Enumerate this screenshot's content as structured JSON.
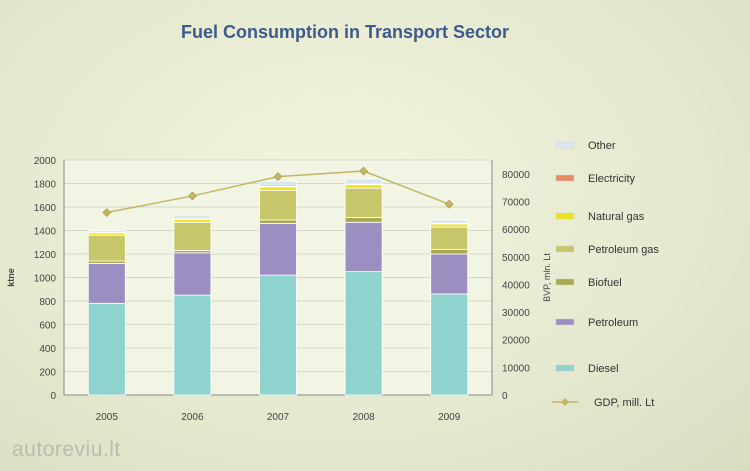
{
  "chart_data": {
    "type": "bar",
    "title": "Fuel Consumption in Transport Sector",
    "ylabel": "ktne",
    "y2label": "BVP, mln. Lt",
    "ylim": [
      0,
      2000
    ],
    "y2lim": [
      0,
      85000
    ],
    "yticks": [
      "0",
      "200",
      "400",
      "600",
      "800",
      "1000",
      "1200",
      "1400",
      "1600",
      "1800",
      "2000"
    ],
    "y2ticks": [
      "0",
      "10000",
      "20000",
      "30000",
      "40000",
      "50000",
      "60000",
      "70000",
      "80000"
    ],
    "categories": [
      "2005",
      "2006",
      "2007",
      "2008",
      "2009"
    ],
    "stacked": true,
    "series": [
      {
        "name": "Diesel",
        "color": "#8fd3cf",
        "values": [
          780,
          850,
          1020,
          1050,
          860
        ]
      },
      {
        "name": "Petroleum",
        "color": "#9d8ec2",
        "values": [
          340,
          360,
          440,
          420,
          340
        ]
      },
      {
        "name": "Biofuel",
        "color": "#a9a94e",
        "values": [
          20,
          20,
          30,
          40,
          40
        ]
      },
      {
        "name": "Petroleum gas",
        "color": "#c7c66a",
        "values": [
          220,
          240,
          250,
          250,
          190
        ]
      },
      {
        "name": "Natural gas",
        "color": "#f0e21b",
        "values": [
          20,
          25,
          30,
          30,
          25
        ]
      },
      {
        "name": "Electricity",
        "color": "#e58a62",
        "values": [
          5,
          5,
          5,
          5,
          5
        ]
      },
      {
        "name": "Other",
        "color": "#d8e6ef",
        "values": [
          15,
          30,
          45,
          45,
          30
        ]
      }
    ],
    "line": {
      "name": "GDP, mill. Lt",
      "color": "#c2b664",
      "values": [
        66000,
        72000,
        79000,
        81000,
        69000
      ]
    },
    "legend": "right"
  },
  "watermark": "autoreviu.lt"
}
